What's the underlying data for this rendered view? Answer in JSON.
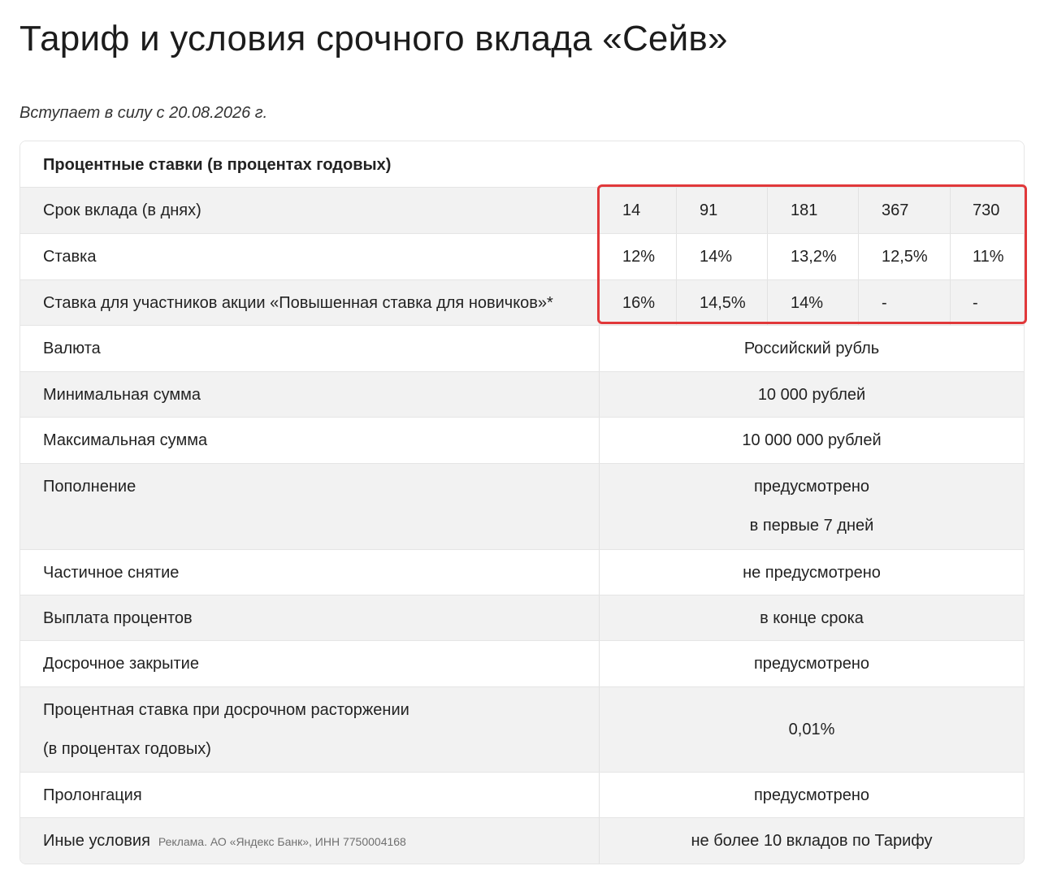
{
  "page": {
    "title": "Тариф и условия срочного вклада «Сейв»",
    "effective_date": "Вступает в силу с 20.08.2026 г."
  },
  "rates_table": {
    "header": "Процентные ставки (в процентах годовых)",
    "term": {
      "label": "Срок вклада (в днях)",
      "values": [
        "14",
        "91",
        "181",
        "367",
        "730"
      ]
    },
    "rate": {
      "label": "Ставка",
      "values": [
        "12%",
        "14%",
        "13,2%",
        "12,5%",
        "11%"
      ]
    },
    "promo": {
      "label": "Ставка для участников акции «Повышенная ставка для новичков»*",
      "values": [
        "16%",
        "14,5%",
        "14%",
        "-",
        "-"
      ]
    }
  },
  "conditions": {
    "currency": {
      "label": "Валюта",
      "value": "Российский рубль"
    },
    "min_amount": {
      "label": "Минимальная сумма",
      "value": "10 000 рублей"
    },
    "max_amount": {
      "label": "Максимальная сумма",
      "value": "10 000 000 рублей"
    },
    "replenishment": {
      "label": "Пополнение",
      "value_line1": "предусмотрено",
      "value_line2": "в первые 7 дней"
    },
    "partial_withdrawal": {
      "label": "Частичное снятие",
      "value": "не предусмотрено"
    },
    "interest_payment": {
      "label": "Выплата процентов",
      "value": "в конце срока"
    },
    "early_closure": {
      "label": "Досрочное закрытие",
      "value": "предусмотрено"
    },
    "early_termination_rate": {
      "label_line1": "Процентная ставка при досрочном расторжении",
      "label_line2": "(в процентах годовых)",
      "value": "0,01%"
    },
    "prolongation": {
      "label": "Пролонгация",
      "value": "предусмотрено"
    },
    "other": {
      "label": "Иные условия",
      "ad_note": "Реклама. АО «Яндекс Банк», ИНН 7750004168",
      "value": "не более 10 вкладов по Тарифу"
    }
  },
  "highlight_color": "#e1383a"
}
